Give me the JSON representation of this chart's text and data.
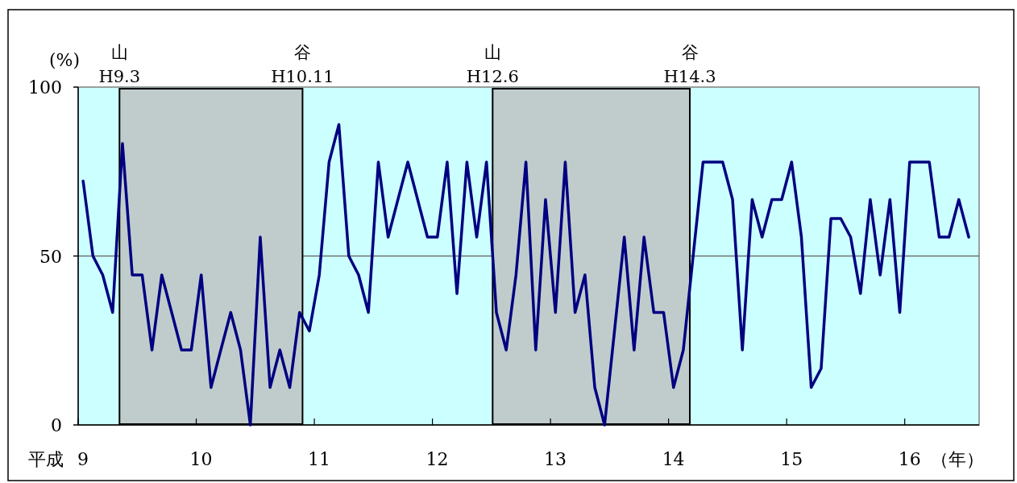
{
  "chart_data": {
    "type": "line",
    "ylabel": "(%)",
    "xlabel": "（年）",
    "annotations": [
      "平成",
      {
        "text": "山",
        "x": 9.35,
        "y": 100
      },
      {
        "text": "H9.3",
        "x": 9.35,
        "y": 100
      },
      {
        "text": "谷",
        "x": 10.9,
        "y": 100
      },
      {
        "text": "H10.11",
        "x": 10.9,
        "y": 100
      },
      {
        "text": "山",
        "x": 12.51,
        "y": 100
      },
      {
        "text": "H12.6",
        "x": 12.51,
        "y": 100
      },
      {
        "text": "谷",
        "x": 14.18,
        "y": 100
      },
      {
        "text": "H14.3",
        "x": 14.18,
        "y": 100
      }
    ],
    "x": [
      9.042,
      9.125,
      9.208,
      9.292,
      9.375,
      9.458,
      9.542,
      9.625,
      9.708,
      9.792,
      9.875,
      9.958,
      10.042,
      10.125,
      10.208,
      10.292,
      10.375,
      10.458,
      10.542,
      10.625,
      10.708,
      10.792,
      10.875,
      10.958,
      11.042,
      11.125,
      11.208,
      11.292,
      11.375,
      11.458,
      11.542,
      11.625,
      11.708,
      11.792,
      11.875,
      11.958,
      12.042,
      12.125,
      12.208,
      12.292,
      12.375,
      12.458,
      12.542,
      12.625,
      12.708,
      12.792,
      12.875,
      12.958,
      13.042,
      13.125,
      13.208,
      13.292,
      13.375,
      13.458,
      13.542,
      13.625,
      13.708,
      13.792,
      13.875,
      13.958,
      14.042,
      14.125,
      14.208,
      14.292,
      14.375,
      14.458,
      14.542,
      14.625,
      14.708,
      14.792,
      14.875,
      14.958,
      15.042,
      15.125,
      15.208,
      15.292,
      15.375,
      15.458,
      15.542,
      15.625,
      15.708,
      15.792,
      15.875,
      15.958,
      16.042,
      16.125,
      16.208,
      16.292,
      16.375,
      16.458,
      16.542
    ],
    "values": [
      72.2,
      50,
      44.4,
      33.3,
      83.3,
      44.4,
      44.4,
      22.2,
      44.4,
      33.3,
      22.2,
      22.2,
      44.4,
      11.1,
      22.2,
      33.3,
      22.2,
      0,
      55.6,
      11.1,
      22.2,
      11.1,
      33.3,
      27.8,
      44.4,
      77.8,
      88.9,
      50,
      44.4,
      33.3,
      77.8,
      55.6,
      66.7,
      77.8,
      66.7,
      55.6,
      55.6,
      77.8,
      38.9,
      77.8,
      55.6,
      77.8,
      33.3,
      22.2,
      44.4,
      77.8,
      22.2,
      66.7,
      33.3,
      77.8,
      33.3,
      44.4,
      11.1,
      0,
      27.8,
      55.6,
      22.2,
      55.6,
      33.3,
      33.3,
      11.1,
      22.2,
      50,
      77.8,
      77.8,
      77.8,
      66.7,
      22.2,
      66.7,
      55.6,
      66.7,
      66.7,
      77.8,
      55.6,
      11.1,
      16.7,
      61.1,
      61.1,
      55.6,
      38.9,
      66.7,
      44.4,
      66.7,
      33.3,
      77.8,
      77.8,
      77.8,
      55.6,
      55.6,
      66.7,
      55.6
    ],
    "color": "#000080",
    "line_style": "solid",
    "xlim": [
      9,
      16.63
    ],
    "ylim": [
      0,
      100
    ],
    "xticks": [
      9,
      10,
      11,
      12,
      13,
      14,
      15,
      16
    ],
    "yticks": [
      0,
      50,
      100
    ],
    "grid": "y",
    "bands": [
      {
        "axis": "x",
        "from": 9.35,
        "to": 10.9,
        "color": "#c0cccc"
      },
      {
        "axis": "x",
        "from": 12.51,
        "to": 14.18,
        "color": "#c0cccc"
      }
    ]
  }
}
